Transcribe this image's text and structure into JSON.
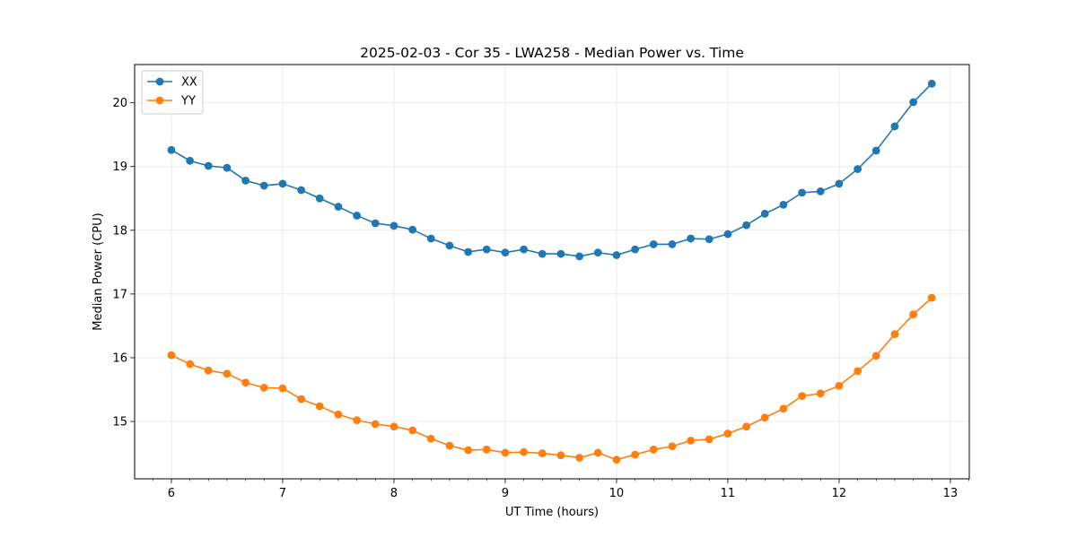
{
  "chart_data": {
    "type": "line",
    "title": "2025-02-03 - Cor 35 - LWA258 - Median Power vs. Time",
    "xlabel": "UT Time (hours)",
    "ylabel": "Median Power (CPU)",
    "xlim": [
      5.67,
      13.17
    ],
    "ylim": [
      14.1,
      20.6
    ],
    "xticks": [
      "6",
      "7",
      "8",
      "9",
      "10",
      "11",
      "12",
      "13"
    ],
    "yticks": [
      "15",
      "16",
      "17",
      "18",
      "19",
      "20"
    ],
    "grid": true,
    "legend_position": "top-left",
    "x": [
      6.0,
      6.167,
      6.333,
      6.5,
      6.667,
      6.833,
      7.0,
      7.167,
      7.333,
      7.5,
      7.667,
      7.833,
      8.0,
      8.167,
      8.333,
      8.5,
      8.667,
      8.833,
      9.0,
      9.167,
      9.333,
      9.5,
      9.667,
      9.833,
      10.0,
      10.167,
      10.333,
      10.5,
      10.667,
      10.833,
      11.0,
      11.167,
      11.333,
      11.5,
      11.667,
      11.833,
      12.0,
      12.167,
      12.333,
      12.5,
      12.667,
      12.833
    ],
    "series": [
      {
        "name": "XX",
        "color": "#1f77b4",
        "values": [
          19.26,
          19.09,
          19.01,
          18.98,
          18.78,
          18.7,
          18.73,
          18.63,
          18.5,
          18.37,
          18.23,
          18.11,
          18.07,
          18.01,
          17.87,
          17.76,
          17.66,
          17.7,
          17.65,
          17.7,
          17.63,
          17.63,
          17.59,
          17.65,
          17.61,
          17.7,
          17.78,
          17.78,
          17.87,
          17.86,
          17.94,
          18.08,
          18.26,
          18.4,
          18.59,
          18.61,
          18.73,
          18.96,
          19.25,
          19.63,
          20.01,
          20.3
        ]
      },
      {
        "name": "YY",
        "color": "#ff7f0e",
        "values": [
          16.04,
          15.9,
          15.8,
          15.75,
          15.61,
          15.53,
          15.52,
          15.35,
          15.24,
          15.11,
          15.02,
          14.96,
          14.92,
          14.86,
          14.73,
          14.62,
          14.55,
          14.56,
          14.51,
          14.52,
          14.5,
          14.47,
          14.43,
          14.51,
          14.4,
          14.48,
          14.56,
          14.61,
          14.7,
          14.72,
          14.81,
          14.92,
          15.06,
          15.2,
          15.4,
          15.44,
          15.56,
          15.79,
          16.03,
          16.37,
          16.68,
          16.94
        ]
      }
    ]
  }
}
